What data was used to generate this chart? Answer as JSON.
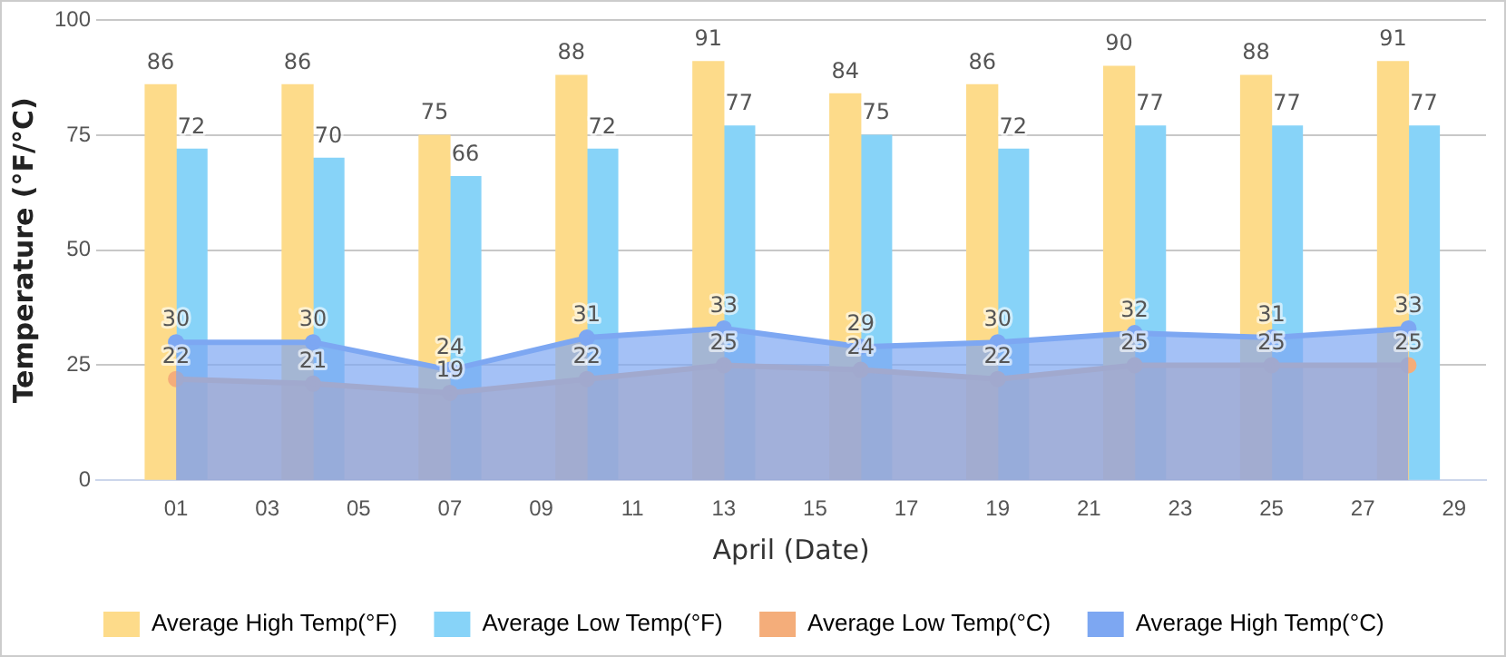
{
  "chart_data": {
    "type": "bar",
    "xlabel": "April (Date)",
    "ylabel": "Temperature (°F/°C)",
    "x": [
      1,
      4,
      7,
      10,
      13,
      16,
      19,
      22,
      25,
      28
    ],
    "xlim": [
      -0.75,
      29.7
    ],
    "xticks": [
      {
        "value": 1,
        "label": "01"
      },
      {
        "value": 3,
        "label": "03"
      },
      {
        "value": 5,
        "label": "05"
      },
      {
        "value": 7,
        "label": "07"
      },
      {
        "value": 9,
        "label": "09"
      },
      11,
      13,
      15,
      17,
      19,
      21,
      23,
      25,
      27,
      29
    ],
    "ylim": [
      0,
      100
    ],
    "yticks": [
      0,
      25,
      50,
      75,
      100
    ],
    "series": [
      {
        "name": "Average High Temp(°F)",
        "color": "#fddb8a",
        "values": [
          86,
          86,
          75,
          88,
          91,
          84,
          86,
          90,
          88,
          91
        ]
      },
      {
        "name": "Average Low Temp(°F)",
        "color": "#87d3f8",
        "values": [
          72,
          70,
          66,
          72,
          77,
          75,
          72,
          77,
          77,
          77
        ]
      },
      {
        "name": "Average Low Temp(°C)",
        "type": "area",
        "color": "#f4ad7a",
        "values": [
          22,
          21,
          19,
          22,
          25,
          24,
          22,
          25,
          25,
          25
        ]
      },
      {
        "name": "Average High Temp(°C)",
        "type": "area",
        "color": "#7da7f2",
        "values": [
          30,
          30,
          24,
          31,
          33,
          29,
          30,
          32,
          31,
          33
        ]
      }
    ],
    "data_labels": true,
    "grid": "y",
    "legend": "bottom",
    "marker": "circle"
  }
}
